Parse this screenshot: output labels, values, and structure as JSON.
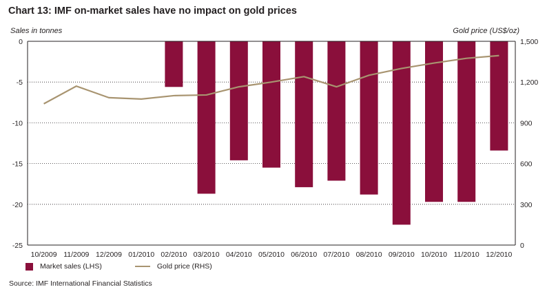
{
  "page": {
    "title": "Chart 13: IMF on-market sales have no impact on gold prices",
    "source": "Source: IMF International Financial Statistics"
  },
  "chart_data": {
    "type": "bar",
    "title": "Chart 13: IMF on-market sales have no impact on gold prices",
    "ylabel": "Sales in tonnes",
    "y2label": "Gold price (US$/oz)",
    "categories": [
      "10/2009",
      "11/2009",
      "12/2009",
      "01/2010",
      "02/2010",
      "03/2010",
      "04/2010",
      "05/2010",
      "06/2010",
      "07/2010",
      "08/2010",
      "09/2010",
      "10/2010",
      "11/2010",
      "12/2010"
    ],
    "series": [
      {
        "name": "Market sales (LHS)",
        "type": "bar",
        "axis": "left",
        "color": "#8a0f3b",
        "values": [
          0,
          0,
          0,
          0,
          -5.6,
          -18.7,
          -14.6,
          -15.5,
          -17.9,
          -17.1,
          -18.8,
          -22.5,
          -19.7,
          -19.7,
          -13.4
        ]
      },
      {
        "name": "Gold price (RHS)",
        "type": "line",
        "axis": "right",
        "color": "#a89470",
        "values": [
          1040,
          1170,
          1085,
          1075,
          1100,
          1105,
          1165,
          1200,
          1240,
          1165,
          1250,
          1300,
          1340,
          1375,
          1395
        ]
      }
    ],
    "ylim": [
      -25,
      0
    ],
    "yticks": [
      "0",
      "-5",
      "-10",
      "-15",
      "-20",
      "-25"
    ],
    "y2lim": [
      0,
      1500
    ],
    "y2ticks": [
      "1,500",
      "1,200",
      "900",
      "600",
      "300",
      "0"
    ],
    "grid": true,
    "legend_position": "bottom-left"
  }
}
